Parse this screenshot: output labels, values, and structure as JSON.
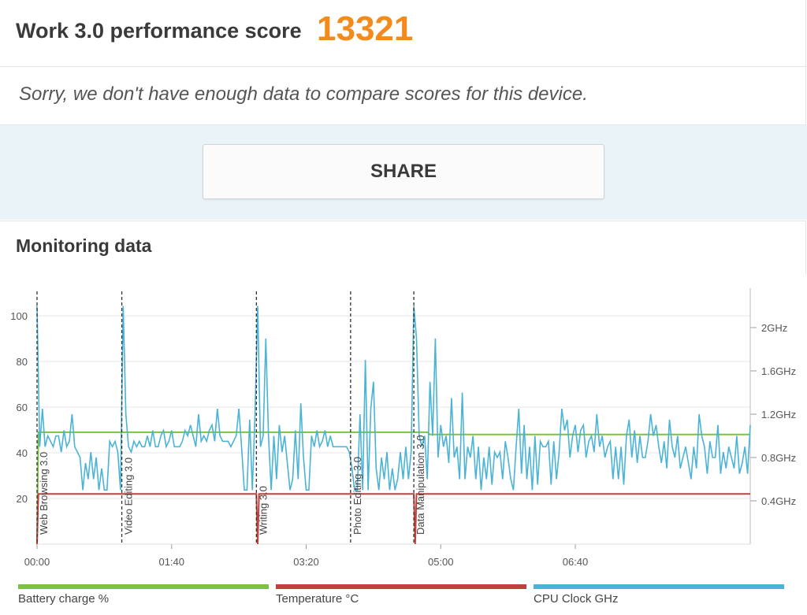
{
  "header": {
    "score_label": "Work 3.0 performance score",
    "score_value": "13321"
  },
  "notice": {
    "text": "Sorry, we don't have enough data to compare scores for this device."
  },
  "share": {
    "label": "SHARE"
  },
  "monitoring": {
    "title": "Monitoring data"
  },
  "colors": {
    "accent": "#f28a1c",
    "battery": "#7cc242",
    "temperature": "#c0403c",
    "cpu": "#4ab3d6",
    "band": "#e9f3f8"
  },
  "chart_data": {
    "type": "line",
    "x_unit": "seconds",
    "xlim": [
      0,
      530
    ],
    "x_ticks": [
      {
        "x": 0,
        "label": "00:00"
      },
      {
        "x": 100,
        "label": "01:40"
      },
      {
        "x": 200,
        "label": "03:20"
      },
      {
        "x": 300,
        "label": "05:00"
      },
      {
        "x": 400,
        "label": "06:40"
      }
    ],
    "y_left": {
      "ticks": [
        20,
        40,
        60,
        80,
        100
      ],
      "ylim": [
        0,
        110
      ]
    },
    "y_right": {
      "ticks": [
        {
          "value": 0.4,
          "label": "0.4GHz"
        },
        {
          "value": 0.8,
          "label": "0.8GHz"
        },
        {
          "value": 1.2,
          "label": "1.2GHz"
        },
        {
          "value": 1.6,
          "label": "1.6GHz"
        },
        {
          "value": 2.0,
          "label": "2GHz"
        }
      ],
      "ylim": [
        0,
        2.32
      ]
    },
    "markers": [
      {
        "x": 0,
        "label": "Web Browsing 3.0"
      },
      {
        "x": 63,
        "label": "Video Editing 3.0"
      },
      {
        "x": 163,
        "label": "Writing 3.0"
      },
      {
        "x": 233,
        "label": "Photo Editing 3.0"
      },
      {
        "x": 280,
        "label": "Data Manipulation 3.0"
      }
    ],
    "series": [
      {
        "name": "Battery charge %",
        "axis": "left",
        "points": [
          [
            0,
            0
          ],
          [
            1,
            49
          ],
          [
            290,
            49
          ],
          [
            292,
            48
          ],
          [
            530,
            48
          ]
        ]
      },
      {
        "name": "Temperature °C",
        "axis": "left",
        "points": [
          [
            0,
            0
          ],
          [
            1,
            22
          ],
          [
            163,
            22
          ],
          [
            164,
            0
          ],
          [
            165,
            22
          ],
          [
            280,
            22
          ],
          [
            281,
            0
          ],
          [
            282,
            22
          ],
          [
            530,
            22
          ]
        ]
      },
      {
        "name": "CPU Clock GHz",
        "axis": "right",
        "points": [
          [
            0,
            2.2
          ],
          [
            2,
            0.9
          ],
          [
            4,
            1.25
          ],
          [
            6,
            0.9
          ],
          [
            8,
            1.0
          ],
          [
            10,
            0.95
          ],
          [
            12,
            0.9
          ],
          [
            14,
            1.0
          ],
          [
            16,
            1.0
          ],
          [
            18,
            0.85
          ],
          [
            20,
            1.05
          ],
          [
            22,
            0.9
          ],
          [
            24,
            0.95
          ],
          [
            26,
            1.2
          ],
          [
            28,
            0.9
          ],
          [
            30,
            0.85
          ],
          [
            32,
            0.8
          ],
          [
            34,
            0.5
          ],
          [
            36,
            0.75
          ],
          [
            38,
            0.6
          ],
          [
            40,
            0.85
          ],
          [
            42,
            0.6
          ],
          [
            44,
            0.8
          ],
          [
            46,
            0.5
          ],
          [
            48,
            0.7
          ],
          [
            50,
            0.5
          ],
          [
            52,
            0.5
          ],
          [
            54,
            0.95
          ],
          [
            56,
            0.9
          ],
          [
            58,
            0.95
          ],
          [
            60,
            0.85
          ],
          [
            62,
            0.5
          ],
          [
            64,
            2.2
          ],
          [
            66,
            1.2
          ],
          [
            68,
            0.9
          ],
          [
            70,
            0.85
          ],
          [
            72,
            0.95
          ],
          [
            74,
            0.9
          ],
          [
            76,
            0.95
          ],
          [
            78,
            0.9
          ],
          [
            80,
            0.9
          ],
          [
            82,
            1.0
          ],
          [
            84,
            0.9
          ],
          [
            86,
            1.05
          ],
          [
            88,
            0.9
          ],
          [
            90,
            0.9
          ],
          [
            92,
            1.0
          ],
          [
            94,
            1.05
          ],
          [
            96,
            0.9
          ],
          [
            98,
            0.95
          ],
          [
            100,
            1.05
          ],
          [
            102,
            0.9
          ],
          [
            104,
            0.9
          ],
          [
            106,
            0.9
          ],
          [
            108,
            0.95
          ],
          [
            110,
            1.05
          ],
          [
            112,
            1.0
          ],
          [
            114,
            1.1
          ],
          [
            116,
            1.0
          ],
          [
            118,
            0.9
          ],
          [
            120,
            1.2
          ],
          [
            122,
            0.95
          ],
          [
            124,
            1.0
          ],
          [
            126,
            0.95
          ],
          [
            128,
            1.05
          ],
          [
            130,
            1.1
          ],
          [
            132,
            0.95
          ],
          [
            134,
            1.25
          ],
          [
            136,
            1.0
          ],
          [
            138,
            0.95
          ],
          [
            140,
            0.95
          ],
          [
            142,
            0.95
          ],
          [
            144,
            0.9
          ],
          [
            146,
            0.95
          ],
          [
            148,
            1.0
          ],
          [
            150,
            1.25
          ],
          [
            152,
            0.9
          ],
          [
            154,
            0.5
          ],
          [
            156,
            0.5
          ],
          [
            158,
            1.15
          ],
          [
            160,
            0.5
          ],
          [
            162,
            1.2
          ],
          [
            164,
            2.2
          ],
          [
            166,
            0.9
          ],
          [
            168,
            1.0
          ],
          [
            170,
            1.9
          ],
          [
            172,
            1.0
          ],
          [
            174,
            0.5
          ],
          [
            176,
            1.0
          ],
          [
            178,
            0.6
          ],
          [
            180,
            1.1
          ],
          [
            182,
            0.85
          ],
          [
            184,
            1.0
          ],
          [
            186,
            0.75
          ],
          [
            188,
            0.5
          ],
          [
            190,
            0.6
          ],
          [
            192,
            1.05
          ],
          [
            194,
            0.6
          ],
          [
            196,
            1.3
          ],
          [
            198,
            0.8
          ],
          [
            200,
            0.5
          ],
          [
            202,
            0.5
          ],
          [
            204,
            1.0
          ],
          [
            206,
            0.9
          ],
          [
            208,
            1.05
          ],
          [
            210,
            0.9
          ],
          [
            212,
            0.95
          ],
          [
            214,
            1.05
          ],
          [
            216,
            0.9
          ],
          [
            218,
            1.0
          ],
          [
            220,
            0.9
          ],
          [
            222,
            0.9
          ],
          [
            224,
            0.9
          ],
          [
            226,
            0.9
          ],
          [
            228,
            0.9
          ],
          [
            230,
            0.9
          ],
          [
            232,
            0.85
          ],
          [
            234,
            0.7
          ],
          [
            236,
            0.5
          ],
          [
            238,
            0.5
          ],
          [
            240,
            1.2
          ],
          [
            242,
            0.5
          ],
          [
            244,
            1.7
          ],
          [
            246,
            0.5
          ],
          [
            248,
            1.25
          ],
          [
            250,
            1.5
          ],
          [
            252,
            0.7
          ],
          [
            254,
            0.5
          ],
          [
            256,
            0.8
          ],
          [
            258,
            0.6
          ],
          [
            260,
            0.85
          ],
          [
            262,
            0.5
          ],
          [
            264,
            0.7
          ],
          [
            266,
            0.5
          ],
          [
            268,
            0.6
          ],
          [
            270,
            0.85
          ],
          [
            272,
            0.6
          ],
          [
            274,
            0.9
          ],
          [
            276,
            0.6
          ],
          [
            278,
            0.85
          ],
          [
            280,
            2.2
          ],
          [
            282,
            1.9
          ],
          [
            284,
            1.0
          ],
          [
            286,
            0.9
          ],
          [
            288,
            1.0
          ],
          [
            290,
            0.6
          ],
          [
            292,
            1.5
          ],
          [
            294,
            1.0
          ],
          [
            296,
            1.9
          ],
          [
            298,
            0.8
          ],
          [
            300,
            1.1
          ],
          [
            302,
            0.9
          ],
          [
            304,
            1.0
          ],
          [
            306,
            0.75
          ],
          [
            308,
            1.35
          ],
          [
            310,
            0.8
          ],
          [
            312,
            0.9
          ],
          [
            314,
            0.6
          ],
          [
            316,
            1.4
          ],
          [
            318,
            0.6
          ],
          [
            320,
            0.9
          ],
          [
            322,
            0.8
          ],
          [
            324,
            1.0
          ],
          [
            326,
            0.6
          ],
          [
            328,
            0.9
          ],
          [
            330,
            0.5
          ],
          [
            332,
            0.8
          ],
          [
            334,
            0.6
          ],
          [
            336,
            0.9
          ],
          [
            338,
            0.55
          ],
          [
            340,
            0.85
          ],
          [
            342,
            0.8
          ],
          [
            344,
            0.85
          ],
          [
            346,
            0.6
          ],
          [
            348,
            0.95
          ],
          [
            350,
            0.8
          ],
          [
            352,
            0.6
          ],
          [
            354,
            0.5
          ],
          [
            356,
            0.9
          ],
          [
            358,
            1.25
          ],
          [
            360,
            0.65
          ],
          [
            362,
            1.1
          ],
          [
            364,
            0.6
          ],
          [
            366,
            0.9
          ],
          [
            368,
            0.5
          ],
          [
            370,
            1.0
          ],
          [
            372,
            0.55
          ],
          [
            374,
            0.95
          ],
          [
            376,
            0.9
          ],
          [
            378,
            0.9
          ],
          [
            380,
            0.95
          ],
          [
            382,
            0.55
          ],
          [
            384,
            0.95
          ],
          [
            386,
            0.6
          ],
          [
            388,
            0.85
          ],
          [
            390,
            1.25
          ],
          [
            392,
            1.05
          ],
          [
            394,
            1.15
          ],
          [
            396,
            0.8
          ],
          [
            398,
            1.0
          ],
          [
            400,
            1.1
          ],
          [
            402,
            0.85
          ],
          [
            404,
            1.05
          ],
          [
            406,
            1.1
          ],
          [
            408,
            0.8
          ],
          [
            410,
            0.95
          ],
          [
            412,
            1.0
          ],
          [
            414,
            0.85
          ],
          [
            416,
            1.2
          ],
          [
            418,
            0.9
          ],
          [
            420,
            1.0
          ],
          [
            422,
            0.8
          ],
          [
            424,
            0.9
          ],
          [
            426,
            0.95
          ],
          [
            428,
            0.6
          ],
          [
            430,
            0.9
          ],
          [
            432,
            0.6
          ],
          [
            434,
            0.9
          ],
          [
            436,
            0.55
          ],
          [
            438,
            1.0
          ],
          [
            440,
            1.15
          ],
          [
            442,
            0.8
          ],
          [
            444,
            1.05
          ],
          [
            446,
            0.75
          ],
          [
            448,
            1.0
          ],
          [
            450,
            0.8
          ],
          [
            452,
            0.8
          ],
          [
            454,
            0.95
          ],
          [
            456,
            1.2
          ],
          [
            458,
            1.0
          ],
          [
            460,
            1.1
          ],
          [
            462,
            0.9
          ],
          [
            464,
            0.75
          ],
          [
            466,
            0.95
          ],
          [
            468,
            0.7
          ],
          [
            470,
            1.15
          ],
          [
            472,
            0.9
          ],
          [
            474,
            0.8
          ],
          [
            476,
            1.0
          ],
          [
            478,
            0.7
          ],
          [
            480,
            0.8
          ],
          [
            482,
            0.9
          ],
          [
            484,
            0.75
          ],
          [
            486,
            0.6
          ],
          [
            488,
            0.9
          ],
          [
            490,
            0.7
          ],
          [
            492,
            1.2
          ],
          [
            494,
            1.0
          ],
          [
            496,
            0.9
          ],
          [
            498,
            0.65
          ],
          [
            500,
            0.95
          ],
          [
            502,
            0.8
          ],
          [
            504,
            0.8
          ],
          [
            506,
            1.1
          ],
          [
            508,
            0.65
          ],
          [
            510,
            0.85
          ],
          [
            512,
            0.7
          ],
          [
            514,
            0.9
          ],
          [
            516,
            0.8
          ],
          [
            518,
            0.7
          ],
          [
            520,
            1.0
          ],
          [
            522,
            0.65
          ],
          [
            524,
            0.75
          ],
          [
            526,
            0.9
          ],
          [
            528,
            0.65
          ],
          [
            530,
            1.1
          ]
        ]
      }
    ],
    "legend": [
      {
        "label": "Battery charge %",
        "color": "#7cc242"
      },
      {
        "label": "Temperature °C",
        "color": "#c0403c"
      },
      {
        "label": "CPU Clock GHz",
        "color": "#4ab3d6"
      }
    ]
  }
}
